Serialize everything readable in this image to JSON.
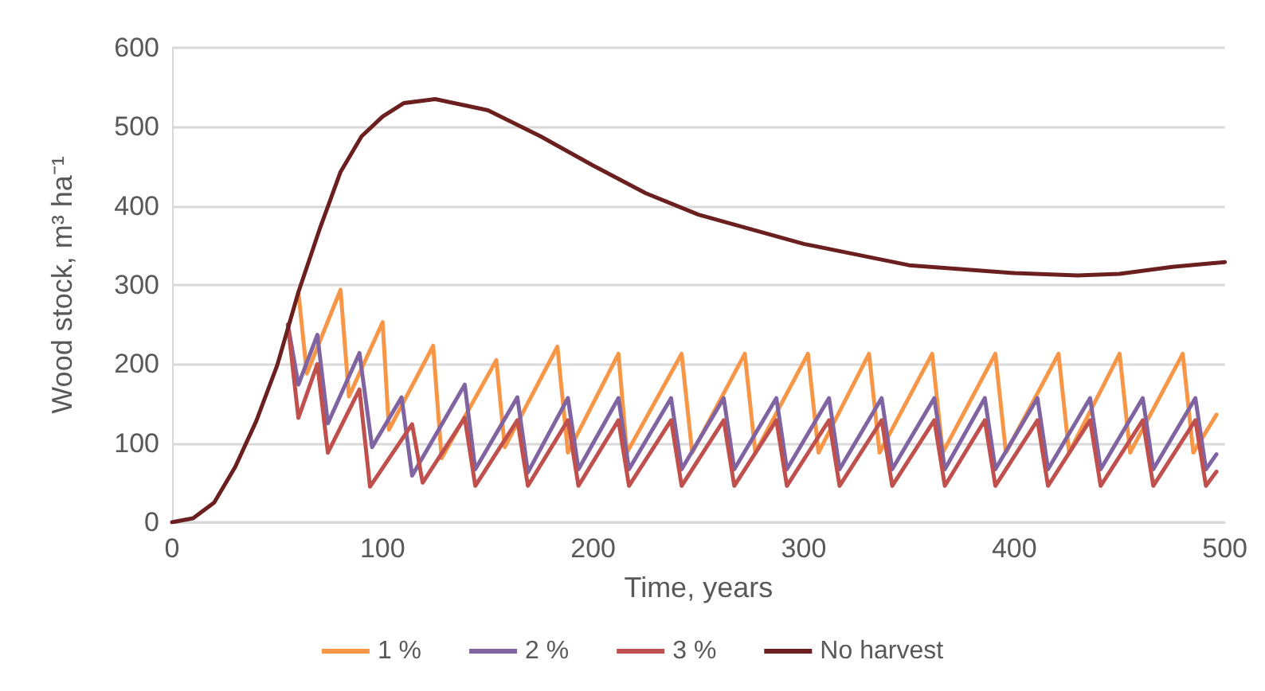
{
  "chart_data": {
    "type": "line",
    "xlabel": "Time, years",
    "ylabel": "Wood stock, m³ ha⁻¹",
    "xlim": [
      0,
      500
    ],
    "xticks": [
      0,
      100,
      200,
      300,
      400,
      500
    ],
    "ylim": [
      0,
      600
    ],
    "yticks": [
      0,
      100,
      200,
      300,
      400,
      500,
      600
    ],
    "grid": "y",
    "legend": "bottom",
    "marker": "none",
    "line_style": "solid",
    "series": [
      {
        "name": "1 %",
        "color": "#f79646",
        "x": [
          60,
          64,
          80,
          84,
          100,
          103,
          124,
          128,
          154,
          158,
          183,
          188,
          212,
          216,
          242,
          247,
          272,
          277,
          302,
          307,
          331,
          336,
          361,
          366,
          391,
          396,
          421,
          426,
          450,
          455,
          480,
          485,
          496
        ],
        "values": [
          291,
          188,
          294,
          159,
          253,
          117,
          223,
          81,
          205,
          95,
          222,
          88,
          213,
          88,
          213,
          88,
          213,
          88,
          213,
          88,
          213,
          88,
          213,
          88,
          213,
          88,
          213,
          88,
          213,
          88,
          213,
          88,
          136
        ]
      },
      {
        "name": "2 %",
        "color": "#8064a2",
        "x": [
          55,
          60,
          69,
          74,
          89,
          95,
          109,
          114,
          139,
          144,
          164,
          169,
          188,
          193,
          212,
          217,
          237,
          242,
          262,
          267,
          287,
          292,
          312,
          317,
          337,
          342,
          362,
          367,
          386,
          391,
          411,
          416,
          436,
          441,
          461,
          466,
          486,
          491,
          496
        ],
        "values": [
          250,
          174,
          237,
          125,
          214,
          95,
          158,
          59,
          174,
          67,
          158,
          63,
          157,
          67,
          157,
          67,
          157,
          67,
          157,
          67,
          157,
          67,
          157,
          67,
          157,
          67,
          157,
          67,
          157,
          67,
          157,
          67,
          157,
          67,
          157,
          67,
          157,
          67,
          86
        ]
      },
      {
        "name": "3 %",
        "color": "#c0504d",
        "x": [
          55,
          60,
          69,
          74,
          89,
          94,
          114,
          119,
          139,
          144,
          164,
          169,
          188,
          193,
          212,
          217,
          237,
          242,
          262,
          267,
          287,
          292,
          312,
          317,
          337,
          342,
          362,
          367,
          386,
          391,
          411,
          416,
          436,
          441,
          461,
          466,
          486,
          491,
          496
        ],
        "values": [
          250,
          132,
          200,
          88,
          168,
          45,
          124,
          50,
          132,
          46,
          129,
          46,
          129,
          46,
          129,
          46,
          129,
          46,
          129,
          46,
          129,
          46,
          129,
          46,
          129,
          46,
          129,
          46,
          129,
          46,
          129,
          46,
          129,
          46,
          129,
          46,
          129,
          46,
          64
        ]
      },
      {
        "name": "No harvest",
        "color": "#6b1f1f",
        "x": [
          0,
          10,
          20,
          30,
          40,
          50,
          60,
          70,
          80,
          90,
          100,
          110,
          125,
          150,
          175,
          200,
          225,
          250,
          300,
          350,
          400,
          430,
          450,
          475,
          500
        ],
        "values": [
          0,
          5,
          25,
          70,
          128,
          199,
          291,
          370,
          443,
          488,
          513,
          530,
          535,
          521,
          488,
          451,
          416,
          389,
          352,
          325,
          315,
          312,
          314,
          323,
          329
        ]
      }
    ]
  }
}
